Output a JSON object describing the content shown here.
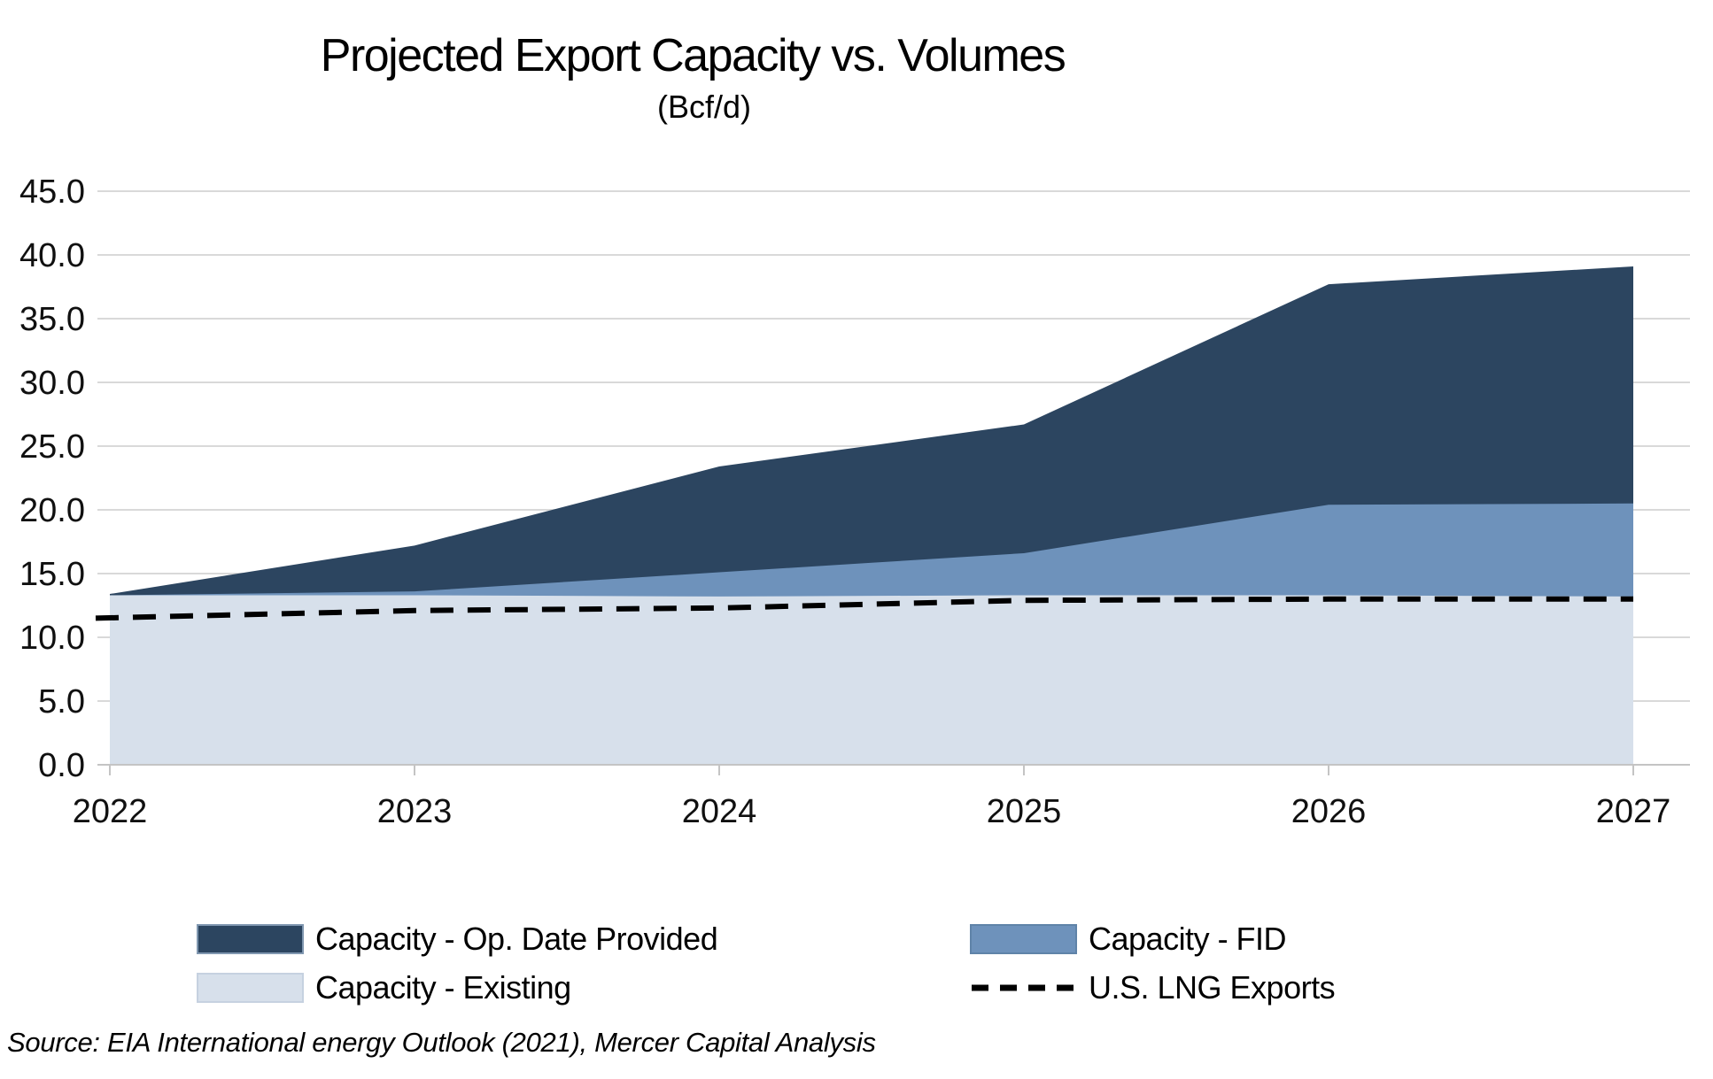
{
  "chart_data": {
    "type": "area",
    "stacked": true,
    "title": "Projected Export Capacity vs. Volumes",
    "subtitle": "(Bcf/d)",
    "x": [
      2022,
      2023,
      2024,
      2025,
      2026,
      2027
    ],
    "xtick_labels": [
      "2022",
      "2023",
      "2024",
      "2025",
      "2026",
      "2027"
    ],
    "ylim": [
      0,
      45
    ],
    "ytick_step": 5,
    "yticks": [
      "45.0",
      "40.0",
      "35.0",
      "30.0",
      "25.0",
      "20.0",
      "15.0",
      "10.0",
      "5.0",
      "0.0"
    ],
    "grid": true,
    "legend_position": "bottom",
    "series": [
      {
        "name": "Capacity - Existing",
        "color": "#D7E0EB",
        "values": [
          13.3,
          13.3,
          13.2,
          13.3,
          13.3,
          13.2
        ]
      },
      {
        "name": "Capacity - FID",
        "color": "#6E92BB",
        "values": [
          0.0,
          0.3,
          1.9,
          3.3,
          7.1,
          7.3
        ]
      },
      {
        "name": "Capacity - Op. Date Provided",
        "color": "#2C4560",
        "values": [
          0.1,
          3.6,
          8.3,
          10.1,
          17.3,
          18.6
        ]
      }
    ],
    "stacked_totals": [
      13.4,
      17.2,
      23.4,
      26.7,
      37.7,
      39.1
    ],
    "line_series": {
      "name": "U.S. LNG Exports",
      "color": "#000000",
      "dashed": true,
      "values": [
        11.5,
        12.1,
        12.3,
        12.9,
        13.0,
        13.0
      ]
    },
    "colors": {
      "grid": "#D9D9D9",
      "axis": "#C4C4C4"
    }
  },
  "source_note": "Source: EIA International energy Outlook (2021), Mercer Capital Analysis"
}
